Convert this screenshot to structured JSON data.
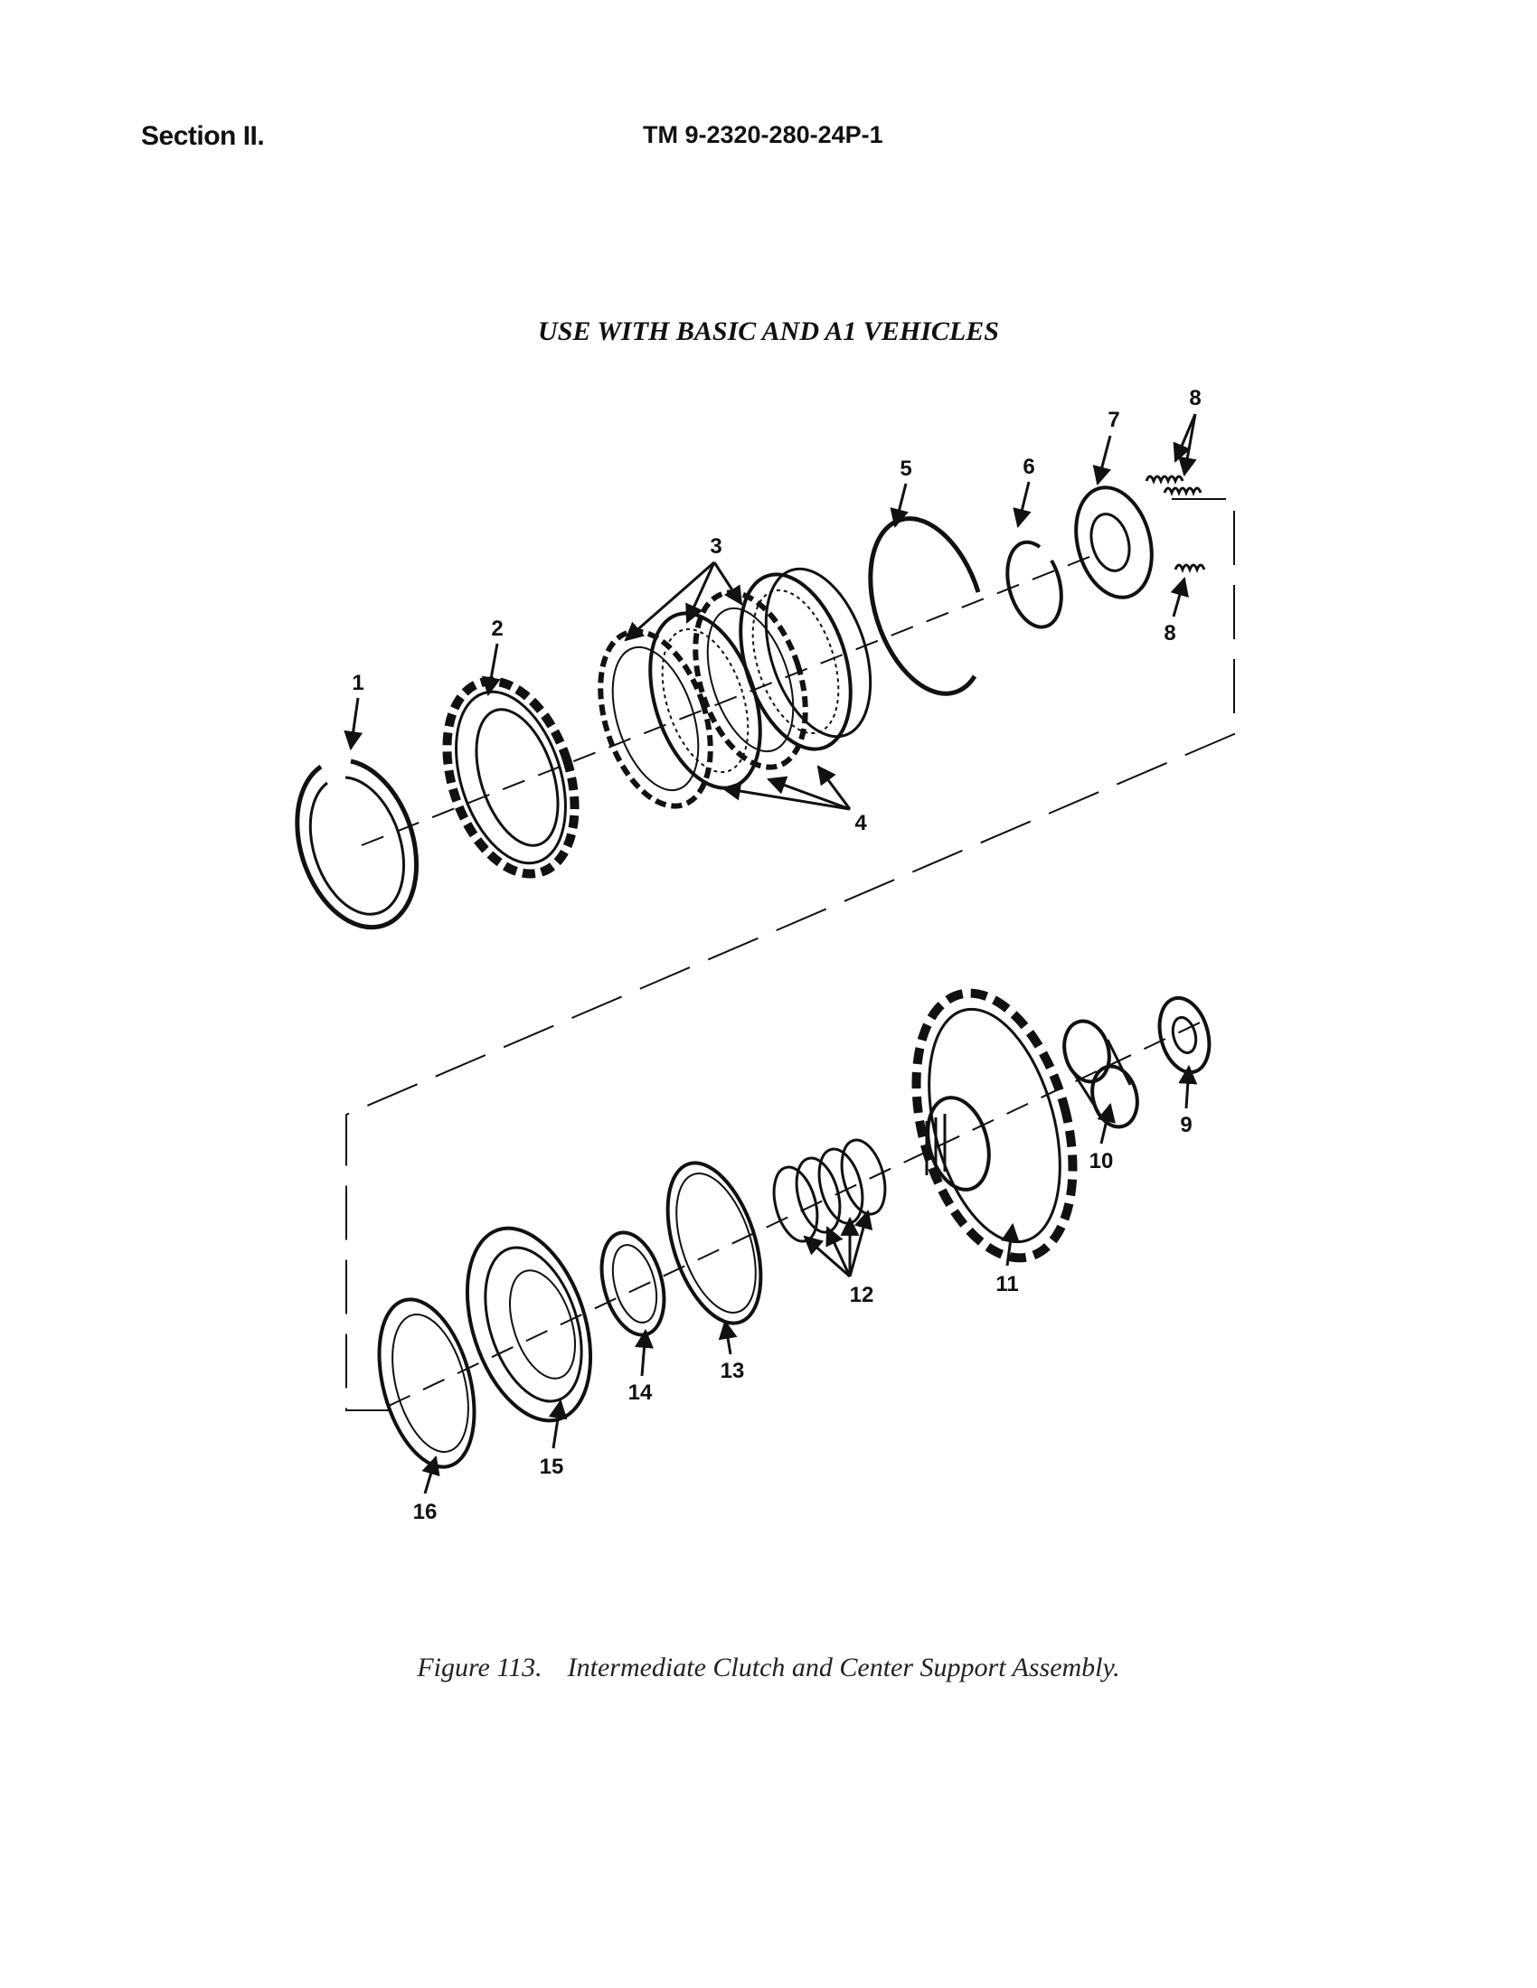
{
  "header": {
    "section": "Section II.",
    "tm_number": "TM 9-2320-280-24P-1"
  },
  "figure": {
    "usage_note": "USE WITH BASIC AND A1 VEHICLES",
    "caption_number": "Figure 113.",
    "caption_title": "Intermediate Clutch and Center Support Assembly.",
    "callouts": [
      "1",
      "2",
      "3",
      "4",
      "5",
      "6",
      "7",
      "8",
      "8",
      "9",
      "10",
      "11",
      "12",
      "13",
      "14",
      "15",
      "16"
    ]
  }
}
